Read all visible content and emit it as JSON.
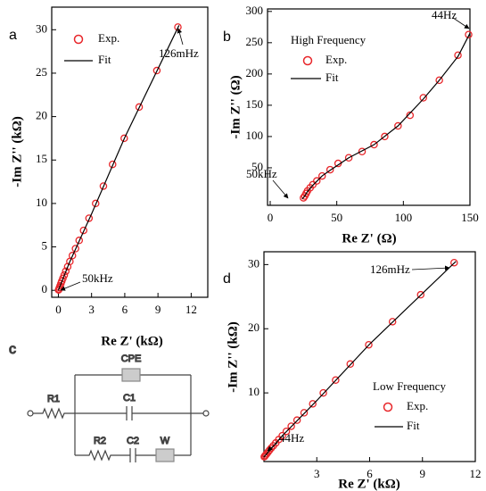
{
  "chart_data": [
    {
      "panel": "a",
      "type": "scatter",
      "xlabel": "Re Z' (kΩ)",
      "ylabel": "-Im Z'' (kΩ)",
      "xlim": [
        -0.6,
        13.5
      ],
      "ylim": [
        -0.8,
        32.6
      ],
      "xticks": [
        0,
        3,
        6,
        9,
        12
      ],
      "yticks": [
        0,
        5,
        10,
        15,
        20,
        25,
        30
      ],
      "annotations": [
        "126mHz",
        "50kHz"
      ],
      "series": [
        {
          "name": "Exp.",
          "color": "#e8262a",
          "marker": "open-circle",
          "x": [
            0.02,
            0.05,
            0.1,
            0.16,
            0.23,
            0.31,
            0.41,
            0.53,
            0.67,
            0.84,
            1.04,
            1.27,
            1.55,
            1.88,
            2.28,
            2.77,
            3.37,
            4.07,
            4.9,
            5.95,
            7.3,
            8.9,
            10.8
          ],
          "values": [
            0.05,
            0.15,
            0.32,
            0.52,
            0.78,
            1.05,
            1.38,
            1.76,
            2.2,
            2.72,
            3.32,
            4.0,
            4.8,
            5.75,
            6.9,
            8.3,
            10.0,
            12.0,
            14.5,
            17.5,
            21.1,
            25.3,
            30.3
          ]
        },
        {
          "name": "Fit",
          "color": "#000000",
          "line": true,
          "x": [
            0,
            1,
            3,
            6,
            10.9
          ],
          "values": [
            0,
            3.2,
            8.8,
            17.6,
            30.5
          ]
        }
      ]
    },
    {
      "panel": "b",
      "type": "scatter",
      "xlabel": "Re Z' (Ω)",
      "ylabel": "-Im Z'' (Ω)",
      "xlim": [
        -2,
        150
      ],
      "ylim": [
        -10,
        304
      ],
      "xticks": [
        0,
        50,
        100,
        150
      ],
      "yticks": [
        50,
        100,
        150,
        200,
        250,
        300
      ],
      "annotations": [
        "44Hz",
        "50kHz"
      ],
      "legend_title": "High Frequency",
      "series": [
        {
          "name": "Exp.",
          "color": "#e8262a",
          "marker": "open-circle",
          "x": [
            25,
            26,
            27,
            28,
            30,
            32,
            35,
            39,
            45,
            51,
            59,
            69,
            78,
            86,
            96,
            105,
            115,
            127,
            141,
            149
          ],
          "values": [
            2,
            5,
            9,
            13,
            18,
            23,
            29,
            37,
            47,
            57,
            66,
            76,
            87,
            100,
            117,
            134,
            162,
            190,
            230,
            263
          ]
        },
        {
          "name": "Fit",
          "color": "#000000",
          "line": true,
          "x": [
            24,
            26,
            28,
            32,
            39,
            45,
            59,
            78,
            96,
            115,
            127,
            141,
            150
          ],
          "values": [
            0,
            5,
            12,
            22,
            37,
            46,
            66,
            87,
            117,
            160,
            190,
            228,
            265
          ]
        }
      ]
    },
    {
      "panel": "d",
      "type": "scatter",
      "xlabel": "Re Z' (kΩ)",
      "ylabel": "-Im Z'' (kΩ)",
      "xlim": [
        0,
        12
      ],
      "ylim": [
        -0.7,
        32
      ],
      "xticks": [
        3,
        6,
        9,
        12
      ],
      "yticks": [
        10,
        20,
        30
      ],
      "annotations": [
        "126mHz",
        "44Hz"
      ],
      "legend_title": "Low Frequency",
      "series": [
        {
          "name": "Exp.",
          "color": "#e8262a",
          "marker": "open-circle",
          "x": [
            0.02,
            0.05,
            0.1,
            0.16,
            0.23,
            0.31,
            0.41,
            0.53,
            0.67,
            0.84,
            1.04,
            1.27,
            1.55,
            1.88,
            2.28,
            2.77,
            3.37,
            4.07,
            4.9,
            5.95,
            7.3,
            8.9,
            10.8
          ],
          "values": [
            0.05,
            0.15,
            0.32,
            0.52,
            0.78,
            1.05,
            1.38,
            1.76,
            2.2,
            2.72,
            3.32,
            4.0,
            4.8,
            5.75,
            6.9,
            8.3,
            10.0,
            12.0,
            14.5,
            17.5,
            21.1,
            25.3,
            30.3
          ]
        },
        {
          "name": "Fit",
          "color": "#000000",
          "line": true,
          "x": [
            0,
            1,
            3,
            6,
            10.9
          ],
          "values": [
            0,
            3.2,
            8.8,
            17.6,
            30.5
          ]
        }
      ]
    }
  ],
  "circuit": {
    "panel": "c",
    "components": [
      "CPE",
      "R1",
      "C1",
      "R2",
      "C2",
      "W"
    ]
  }
}
